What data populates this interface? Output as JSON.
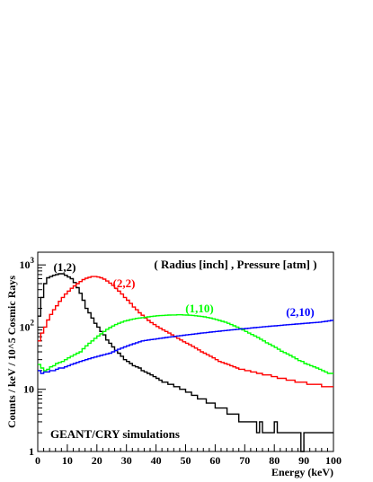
{
  "chart_data": {
    "type": "line",
    "title": "",
    "xlabel": "Energy (keV)",
    "ylabel": "Counts / keV / 10^5 Cosmic Rays",
    "xlim": [
      0,
      100
    ],
    "ylim": [
      1,
      1600
    ],
    "yscale": "log",
    "x_ticks": [
      "0",
      "10",
      "20",
      "30",
      "40",
      "50",
      "60",
      "70",
      "80",
      "90",
      "100"
    ],
    "y_ticks": [
      {
        "base": "1",
        "exp": ""
      },
      {
        "base": "10",
        "exp": ""
      },
      {
        "base": "10",
        "exp": "2"
      },
      {
        "base": "10",
        "exp": "3"
      }
    ],
    "legend_title": "( Radius [inch] , Pressure [atm] )",
    "annotation": "GEANT/CRY simulations",
    "bin_width": 1,
    "series": [
      {
        "name": "(1,2)",
        "color": "#000000",
        "values": [
          150,
          300,
          500,
          620,
          650,
          680,
          700,
          720,
          720,
          680,
          640,
          600,
          520,
          430,
          350,
          270,
          200,
          170,
          140,
          115,
          100,
          85,
          75,
          62,
          55,
          48,
          42,
          38,
          34,
          30,
          28,
          26,
          24,
          23,
          22,
          20,
          19,
          18,
          17,
          16,
          15,
          14,
          13,
          13,
          12,
          12,
          11,
          11,
          10,
          10,
          9,
          9,
          8,
          8,
          7,
          7,
          7,
          6,
          6,
          6,
          5,
          5,
          5,
          5,
          4,
          4,
          4,
          4,
          3,
          3,
          3,
          3,
          3,
          3,
          2,
          3,
          2,
          2,
          2,
          2,
          3,
          2,
          2,
          2,
          2,
          2,
          2,
          2,
          2,
          1,
          2,
          2,
          2,
          2,
          2,
          2,
          2,
          2,
          2,
          2
        ]
      },
      {
        "name": "(2,2)",
        "color": "#ff0000",
        "values": [
          60,
          80,
          100,
          130,
          160,
          190,
          220,
          260,
          300,
          340,
          380,
          420,
          460,
          500,
          540,
          580,
          610,
          630,
          650,
          650,
          640,
          620,
          590,
          550,
          510,
          470,
          420,
          380,
          340,
          300,
          270,
          240,
          210,
          190,
          170,
          155,
          140,
          128,
          118,
          110,
          102,
          96,
          90,
          85,
          80,
          75,
          70,
          66,
          62,
          58,
          55,
          52,
          49,
          46,
          43,
          40,
          38,
          36,
          34,
          32,
          30,
          28,
          27,
          26,
          25,
          24,
          23,
          22,
          21,
          21,
          20,
          20,
          19,
          19,
          18,
          18,
          17,
          17,
          17,
          16,
          16,
          15,
          15,
          15,
          14,
          14,
          14,
          13,
          13,
          13,
          13,
          12,
          12,
          12,
          12,
          12,
          11,
          11,
          11,
          11
        ]
      },
      {
        "name": "(1,10)",
        "color": "#00ff00",
        "values": [
          25,
          22,
          20,
          21,
          23,
          24,
          26,
          27,
          28,
          30,
          32,
          34,
          36,
          38,
          40,
          45,
          50,
          55,
          60,
          66,
          72,
          78,
          85,
          92,
          98,
          104,
          110,
          115,
          120,
          125,
          128,
          132,
          135,
          138,
          140,
          142,
          144,
          146,
          148,
          150,
          152,
          153,
          154,
          155,
          156,
          157,
          157,
          158,
          158,
          157,
          156,
          155,
          154,
          152,
          150,
          148,
          146,
          143,
          140,
          136,
          132,
          128,
          124,
          120,
          115,
          110,
          105,
          100,
          95,
          90,
          85,
          80,
          76,
          72,
          68,
          64,
          60,
          56,
          53,
          50,
          47,
          44,
          41,
          39,
          37,
          35,
          33,
          31,
          29,
          28,
          26,
          25,
          24,
          23,
          22,
          21,
          20,
          19,
          18,
          18
        ]
      },
      {
        "name": "(2,10)",
        "color": "#0000ff",
        "values": [
          20,
          18,
          19,
          19,
          20,
          20,
          21,
          22,
          22,
          23,
          24,
          25,
          26,
          27,
          28,
          29,
          30,
          31,
          32,
          33,
          34,
          35,
          36,
          37,
          38,
          40,
          42,
          44,
          46,
          48,
          50,
          52,
          54,
          56,
          58,
          60,
          61,
          62,
          63,
          64,
          65,
          66,
          67,
          68,
          69,
          70,
          71,
          72,
          73,
          74,
          75,
          76,
          77,
          78,
          79,
          80,
          81,
          82,
          83,
          84,
          85,
          86,
          87,
          88,
          89,
          90,
          91,
          92,
          93,
          94,
          95,
          96,
          97,
          98,
          99,
          100,
          101,
          102,
          103,
          104,
          105,
          106,
          107,
          108,
          109,
          110,
          111,
          112,
          113,
          114,
          115,
          116,
          117,
          118,
          119,
          120,
          122,
          124,
          126,
          128
        ]
      }
    ]
  }
}
